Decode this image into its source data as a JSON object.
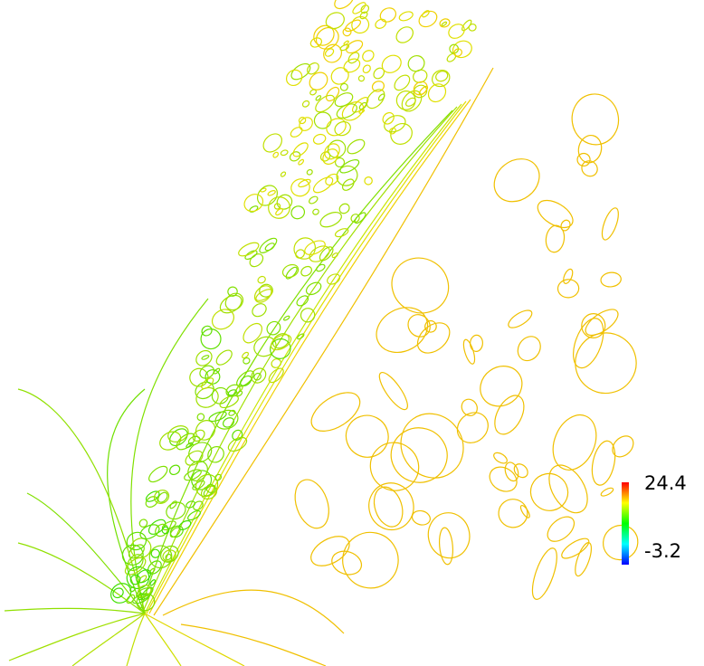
{
  "chart_data": {
    "type": "contour",
    "clim": [
      -3.2,
      24.4
    ],
    "cticks": [
      -3.2,
      24.4
    ]
  }
}
